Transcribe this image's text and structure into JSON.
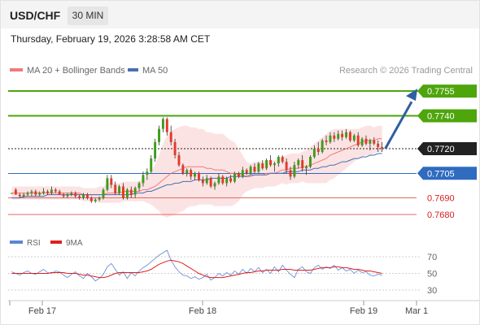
{
  "header": {
    "symbol": "USD/CHF",
    "timeframe": "30 MIN",
    "datetime": "Thursday, February 19, 2026 3:28:58 AM CET"
  },
  "legend": {
    "ma20": "MA 20 + Bollinger Bands",
    "ma50": "MA 50",
    "credit": "Research © 2026 Trading Central"
  },
  "rsi_legend": {
    "rsi": "RSI",
    "ma": "9MA"
  },
  "colors": {
    "green": "#4ea50c",
    "blue": "#2f6bbf",
    "red": "#e06a6a",
    "dark": "#222222",
    "candle_up": "#3f9c1a",
    "candle_down": "#e23a2a",
    "band": "#fbd9d9",
    "ma20": "#f07a7a",
    "ma50": "#4a6fb0",
    "rsi": "#5b86d6",
    "rsi_ma": "#e01e1e"
  },
  "chart_data": {
    "type": "candlestick",
    "ylim": [
      0.7673,
      0.7763
    ],
    "x_labels": [
      "Feb 17",
      "Feb 18",
      "Feb 19",
      "Mar 1"
    ],
    "levels": [
      {
        "value": 0.7755,
        "label": "0.7755",
        "kind": "resistance",
        "color": "#4ea50c"
      },
      {
        "value": 0.774,
        "label": "0.7740",
        "kind": "resistance",
        "color": "#4ea50c"
      },
      {
        "value": 0.772,
        "label": "0.7720",
        "kind": "pivot",
        "color": "#222222"
      },
      {
        "value": 0.7705,
        "label": "0.7705",
        "kind": "pivot",
        "color": "#2f6bbf"
      },
      {
        "value": 0.769,
        "label": "0.7690",
        "kind": "support",
        "color": "#e06a6a"
      },
      {
        "value": 0.768,
        "label": "0.7680",
        "kind": "support",
        "color": "#e06a6a"
      }
    ],
    "candles": [
      [
        0.7693,
        0.7693,
        0.7693,
        0.7693
      ],
      [
        0.7695,
        0.7696,
        0.7692,
        0.7692
      ],
      [
        0.7692,
        0.7693,
        0.769,
        0.7691
      ],
      [
        0.7691,
        0.7693,
        0.769,
        0.7692
      ],
      [
        0.7692,
        0.7694,
        0.7691,
        0.7693
      ],
      [
        0.7693,
        0.7695,
        0.7691,
        0.7694
      ],
      [
        0.7694,
        0.7695,
        0.7691,
        0.7692
      ],
      [
        0.7692,
        0.7694,
        0.7691,
        0.7693
      ],
      [
        0.7693,
        0.7696,
        0.7692,
        0.7694
      ],
      [
        0.7694,
        0.7695,
        0.7692,
        0.7693
      ],
      [
        0.7693,
        0.7697,
        0.7692,
        0.7695
      ],
      [
        0.7695,
        0.7696,
        0.7693,
        0.7694
      ],
      [
        0.7694,
        0.7695,
        0.7692,
        0.7692
      ],
      [
        0.7692,
        0.7693,
        0.769,
        0.7691
      ],
      [
        0.7691,
        0.7693,
        0.769,
        0.7692
      ],
      [
        0.7692,
        0.7694,
        0.7691,
        0.7693
      ],
      [
        0.7693,
        0.7694,
        0.769,
        0.7691
      ],
      [
        0.7691,
        0.7692,
        0.7689,
        0.769
      ],
      [
        0.769,
        0.7693,
        0.7689,
        0.7692
      ],
      [
        0.7692,
        0.7693,
        0.7689,
        0.769
      ],
      [
        0.769,
        0.7691,
        0.7687,
        0.7688
      ],
      [
        0.7688,
        0.769,
        0.7687,
        0.7689
      ],
      [
        0.7689,
        0.7691,
        0.7688,
        0.769
      ],
      [
        0.769,
        0.7696,
        0.7689,
        0.7695
      ],
      [
        0.7695,
        0.7704,
        0.7694,
        0.7702
      ],
      [
        0.7702,
        0.7704,
        0.7696,
        0.7698
      ],
      [
        0.7698,
        0.77,
        0.7692,
        0.7693
      ],
      [
        0.7693,
        0.7698,
        0.7692,
        0.7697
      ],
      [
        0.7697,
        0.7699,
        0.7689,
        0.769
      ],
      [
        0.769,
        0.7696,
        0.7689,
        0.7695
      ],
      [
        0.7695,
        0.7697,
        0.769,
        0.7692
      ],
      [
        0.7692,
        0.7697,
        0.769,
        0.7696
      ],
      [
        0.7696,
        0.77,
        0.7694,
        0.7699
      ],
      [
        0.7699,
        0.7706,
        0.7697,
        0.7704
      ],
      [
        0.7704,
        0.7708,
        0.7701,
        0.7706
      ],
      [
        0.7706,
        0.7716,
        0.7705,
        0.7714
      ],
      [
        0.7714,
        0.7726,
        0.7712,
        0.7724
      ],
      [
        0.7724,
        0.7734,
        0.7722,
        0.7732
      ],
      [
        0.7732,
        0.7739,
        0.773,
        0.7738
      ],
      [
        0.7738,
        0.7739,
        0.7728,
        0.773
      ],
      [
        0.773,
        0.7734,
        0.7722,
        0.7724
      ],
      [
        0.7724,
        0.7726,
        0.7714,
        0.7716
      ],
      [
        0.7716,
        0.7718,
        0.7709,
        0.771
      ],
      [
        0.771,
        0.7711,
        0.7704,
        0.7705
      ],
      [
        0.7705,
        0.7708,
        0.7703,
        0.7707
      ],
      [
        0.7707,
        0.7708,
        0.7701,
        0.7703
      ],
      [
        0.7703,
        0.7706,
        0.7701,
        0.7705
      ],
      [
        0.7705,
        0.7706,
        0.77,
        0.7701
      ],
      [
        0.7701,
        0.7703,
        0.7697,
        0.7699
      ],
      [
        0.7699,
        0.7704,
        0.7698,
        0.7702
      ],
      [
        0.7702,
        0.7703,
        0.7696,
        0.7697
      ],
      [
        0.7697,
        0.77,
        0.7695,
        0.7699
      ],
      [
        0.7699,
        0.7705,
        0.7698,
        0.7703
      ],
      [
        0.7703,
        0.7704,
        0.7698,
        0.7699
      ],
      [
        0.7699,
        0.7703,
        0.7697,
        0.7702
      ],
      [
        0.7702,
        0.7704,
        0.7699,
        0.77
      ],
      [
        0.77,
        0.7706,
        0.7699,
        0.7705
      ],
      [
        0.7705,
        0.7706,
        0.7702,
        0.7703
      ],
      [
        0.7703,
        0.7709,
        0.7702,
        0.7707
      ],
      [
        0.7707,
        0.7708,
        0.7704,
        0.7705
      ],
      [
        0.7705,
        0.771,
        0.7704,
        0.7709
      ],
      [
        0.7709,
        0.7711,
        0.7705,
        0.7706
      ],
      [
        0.7706,
        0.7712,
        0.7705,
        0.7711
      ],
      [
        0.7711,
        0.7713,
        0.7707,
        0.7708
      ],
      [
        0.7708,
        0.7714,
        0.7707,
        0.7713
      ],
      [
        0.7713,
        0.7716,
        0.7709,
        0.771
      ],
      [
        0.771,
        0.7712,
        0.7706,
        0.7711
      ],
      [
        0.7711,
        0.7716,
        0.7709,
        0.7715
      ],
      [
        0.7715,
        0.7716,
        0.7711,
        0.7712
      ],
      [
        0.7712,
        0.7714,
        0.7705,
        0.7707
      ],
      [
        0.7707,
        0.7709,
        0.7701,
        0.7703
      ],
      [
        0.7703,
        0.7712,
        0.7702,
        0.771
      ],
      [
        0.771,
        0.7714,
        0.7708,
        0.7713
      ],
      [
        0.7713,
        0.7716,
        0.7706,
        0.7708
      ],
      [
        0.7708,
        0.771,
        0.7704,
        0.7709
      ],
      [
        0.7709,
        0.7716,
        0.7708,
        0.7715
      ],
      [
        0.7715,
        0.7722,
        0.7714,
        0.772
      ],
      [
        0.772,
        0.7724,
        0.7716,
        0.7718
      ],
      [
        0.7718,
        0.7726,
        0.7717,
        0.7725
      ],
      [
        0.7725,
        0.7728,
        0.7722,
        0.7724
      ],
      [
        0.7724,
        0.773,
        0.7723,
        0.7728
      ],
      [
        0.7728,
        0.773,
        0.7724,
        0.7726
      ],
      [
        0.7726,
        0.7731,
        0.7725,
        0.7729
      ],
      [
        0.7729,
        0.7731,
        0.7725,
        0.7727
      ],
      [
        0.7727,
        0.7732,
        0.7726,
        0.773
      ],
      [
        0.773,
        0.7731,
        0.7724,
        0.7725
      ],
      [
        0.7725,
        0.7729,
        0.7724,
        0.7728
      ],
      [
        0.7728,
        0.773,
        0.7721,
        0.7722
      ],
      [
        0.7722,
        0.7727,
        0.7721,
        0.7726
      ],
      [
        0.7726,
        0.7728,
        0.7722,
        0.7723
      ],
      [
        0.7723,
        0.7726,
        0.7719,
        0.7725
      ],
      [
        0.7725,
        0.7727,
        0.7722,
        0.7723
      ],
      [
        0.7723,
        0.7725,
        0.7718,
        0.7721
      ],
      [
        0.7721,
        0.7724,
        0.7718,
        0.772
      ]
    ],
    "ma20": [
      0.7693,
      0.7693,
      0.7693,
      0.7693,
      0.7693,
      0.7693,
      0.7693,
      0.7693,
      0.7693,
      0.7693,
      0.7693,
      0.7693,
      0.7693,
      0.7693,
      0.7693,
      0.7693,
      0.7693,
      0.7693,
      0.7692,
      0.7692,
      0.7692,
      0.7692,
      0.7692,
      0.7692,
      0.7693,
      0.7693,
      0.7693,
      0.7693,
      0.7694,
      0.7694,
      0.7694,
      0.7694,
      0.7694,
      0.7695,
      0.7695,
      0.7696,
      0.7697,
      0.7699,
      0.7701,
      0.7703,
      0.7705,
      0.7706,
      0.7707,
      0.7708,
      0.7709,
      0.7709,
      0.7709,
      0.7709,
      0.7709,
      0.7708,
      0.7708,
      0.7707,
      0.7707,
      0.7707,
      0.7706,
      0.7705,
      0.7705,
      0.7704,
      0.7704,
      0.7703,
      0.7703,
      0.7704,
      0.7704,
      0.7704,
      0.7705,
      0.7705,
      0.7705,
      0.7706,
      0.7707,
      0.7707,
      0.7708,
      0.7708,
      0.7708,
      0.7709,
      0.7709,
      0.771,
      0.7711,
      0.7712,
      0.7713,
      0.7714,
      0.7716,
      0.7717,
      0.7718,
      0.7719,
      0.772,
      0.7721,
      0.7722,
      0.7723,
      0.7724,
      0.7725,
      0.7725,
      0.7725,
      0.7726,
      0.7726
    ],
    "ma50": [
      0.769,
      0.769,
      0.769,
      0.7691,
      0.7691,
      0.7691,
      0.7691,
      0.7691,
      0.7691,
      0.7692,
      0.7692,
      0.7692,
      0.7692,
      0.7692,
      0.7692,
      0.7692,
      0.7692,
      0.7692,
      0.7692,
      0.7692,
      0.7692,
      0.7692,
      0.7692,
      0.7692,
      0.7692,
      0.7692,
      0.7692,
      0.7692,
      0.7692,
      0.7692,
      0.7692,
      0.7693,
      0.7693,
      0.7693,
      0.7694,
      0.7694,
      0.7695,
      0.7696,
      0.7697,
      0.7698,
      0.7698,
      0.7699,
      0.7699,
      0.77,
      0.77,
      0.77,
      0.7701,
      0.7701,
      0.7701,
      0.7701,
      0.7702,
      0.7702,
      0.7702,
      0.7702,
      0.7702,
      0.7703,
      0.7703,
      0.7703,
      0.7703,
      0.7703,
      0.7704,
      0.7704,
      0.7704,
      0.7704,
      0.7704,
      0.7705,
      0.7705,
      0.7705,
      0.7705,
      0.7706,
      0.7706,
      0.7706,
      0.7706,
      0.7707,
      0.7707,
      0.7707,
      0.7708,
      0.7708,
      0.7709,
      0.7709,
      0.771,
      0.771,
      0.7711,
      0.7712,
      0.7712,
      0.7713,
      0.7714,
      0.7714,
      0.7715,
      0.7715,
      0.7716,
      0.7716,
      0.7717,
      0.7717
    ],
    "bb_width": [
      0.0004,
      0.0004,
      0.0004,
      0.0004,
      0.0004,
      0.0004,
      0.0004,
      0.0004,
      0.0004,
      0.0004,
      0.0004,
      0.0004,
      0.0004,
      0.0004,
      0.0004,
      0.0004,
      0.0004,
      0.0004,
      0.0004,
      0.0004,
      0.0004,
      0.0004,
      0.0005,
      0.0005,
      0.0006,
      0.0006,
      0.0006,
      0.0006,
      0.0006,
      0.0006,
      0.0006,
      0.0006,
      0.0006,
      0.0007,
      0.0008,
      0.001,
      0.0013,
      0.0017,
      0.0022,
      0.0025,
      0.0026,
      0.0026,
      0.0026,
      0.0026,
      0.0025,
      0.0024,
      0.0024,
      0.0023,
      0.0023,
      0.0022,
      0.0022,
      0.0022,
      0.0022,
      0.0022,
      0.0021,
      0.002,
      0.0019,
      0.0016,
      0.0012,
      0.0009,
      0.0008,
      0.0008,
      0.0008,
      0.0008,
      0.0008,
      0.0008,
      0.0008,
      0.0008,
      0.0008,
      0.0009,
      0.0009,
      0.0009,
      0.0009,
      0.0009,
      0.001,
      0.0011,
      0.0012,
      0.0013,
      0.0014,
      0.0015,
      0.0015,
      0.0015,
      0.0014,
      0.0013,
      0.0012,
      0.0011,
      0.001,
      0.0009,
      0.0009,
      0.0009,
      0.0009,
      0.0008,
      0.0008,
      0.0008
    ],
    "forecast": {
      "from": 0.772,
      "to": 0.7755
    },
    "rsi": {
      "ticks": [
        70,
        50,
        30
      ],
      "ylim": [
        25,
        80
      ],
      "values": [
        52,
        50,
        48,
        51,
        53,
        50,
        49,
        52,
        55,
        51,
        50,
        53,
        52,
        48,
        45,
        49,
        52,
        47,
        44,
        50,
        46,
        41,
        44,
        49,
        58,
        62,
        55,
        48,
        52,
        44,
        51,
        47,
        53,
        57,
        60,
        64,
        68,
        72,
        75,
        78,
        66,
        58,
        52,
        48,
        47,
        44,
        46,
        43,
        45,
        49,
        42,
        45,
        50,
        47,
        51,
        48,
        53,
        49,
        55,
        50,
        56,
        52,
        57,
        51,
        55,
        50,
        58,
        52,
        60,
        54,
        49,
        45,
        55,
        58,
        52,
        50,
        57,
        60,
        55,
        58,
        56,
        60,
        54,
        57,
        53,
        55,
        50,
        54,
        51,
        52,
        48,
        47,
        49,
        48
      ],
      "ma_values": [
        50,
        50,
        50,
        50,
        50,
        50,
        50,
        50,
        50,
        50,
        51,
        51,
        51,
        51,
        50,
        50,
        50,
        49,
        48,
        48,
        47,
        46,
        45,
        45,
        46,
        48,
        50,
        51,
        51,
        51,
        51,
        51,
        51,
        52,
        53,
        55,
        58,
        61,
        63,
        65,
        66,
        65,
        64,
        62,
        59,
        56,
        53,
        50,
        48,
        46,
        45,
        45,
        45,
        45,
        46,
        47,
        48,
        49,
        50,
        51,
        51,
        52,
        53,
        53,
        54,
        54,
        54,
        54,
        55,
        55,
        55,
        54,
        54,
        54,
        54,
        54,
        55,
        56,
        57,
        57,
        57,
        58,
        58,
        57,
        57,
        56,
        55,
        55,
        54,
        53,
        53,
        52,
        51,
        50
      ]
    }
  }
}
